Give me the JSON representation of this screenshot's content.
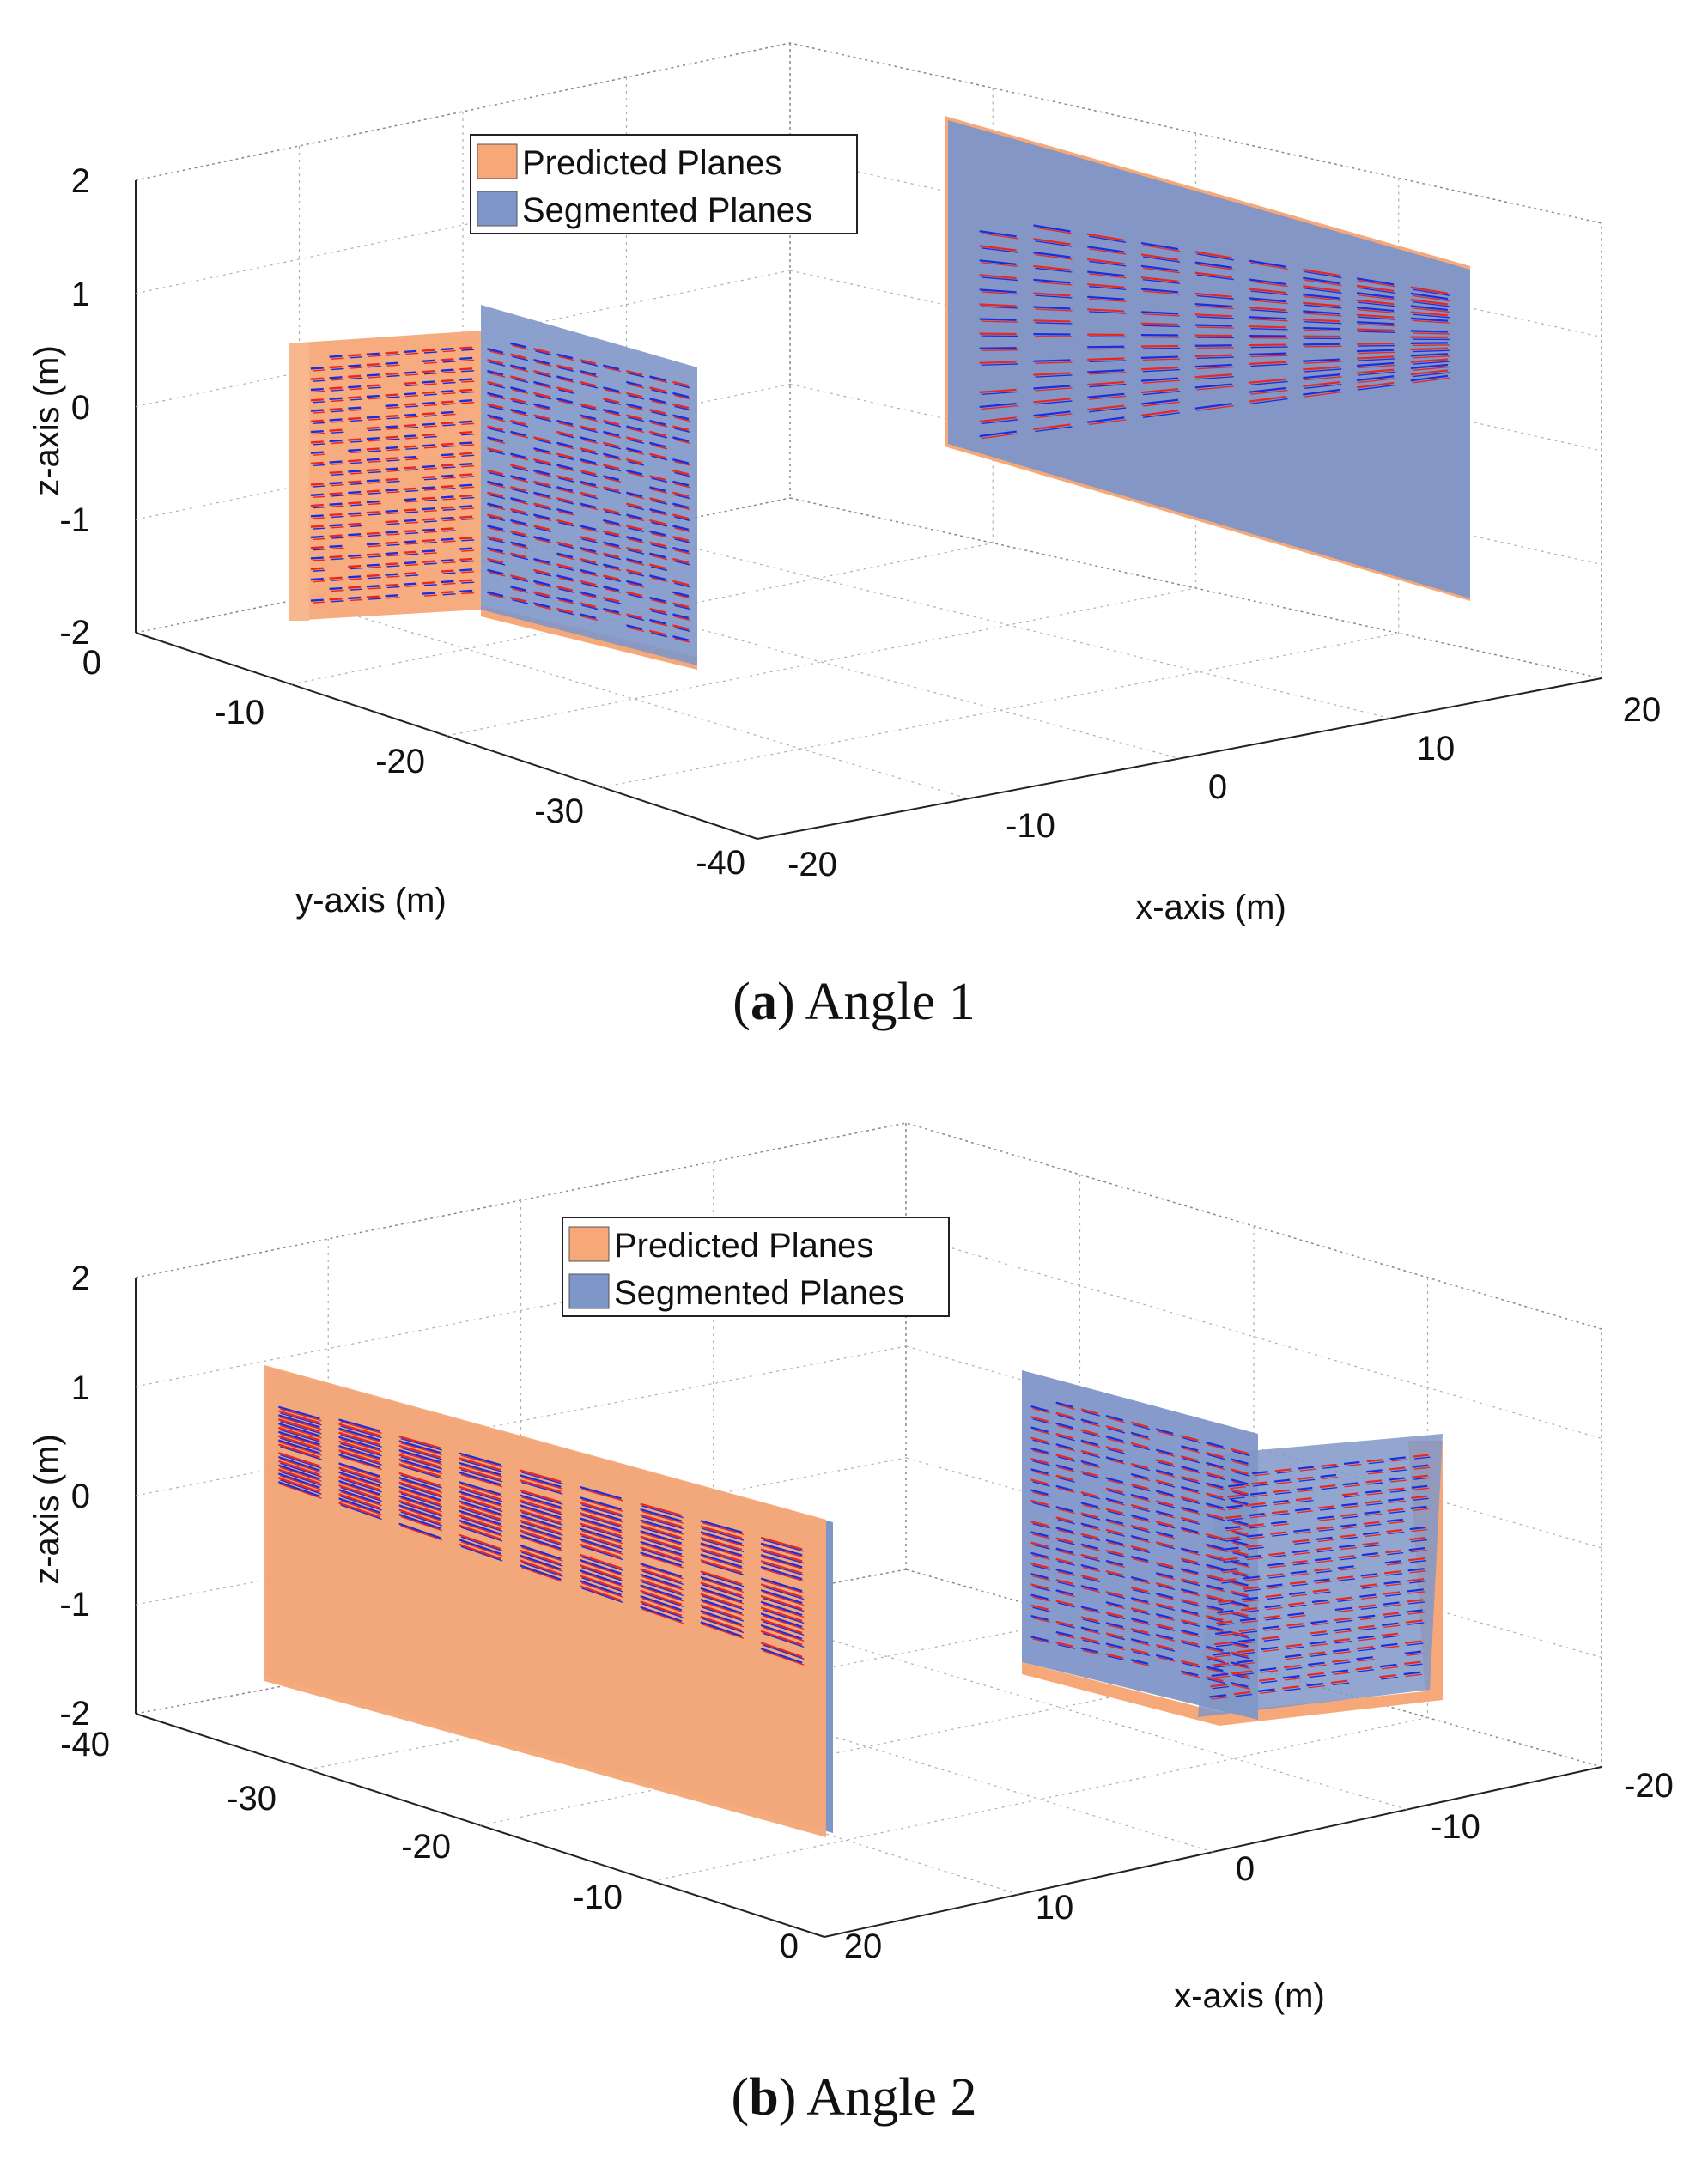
{
  "colors": {
    "predicted": "#f6a878",
    "segmented": "#7f96c8",
    "points_red": "#e8281e",
    "points_blue": "#1a2ee0"
  },
  "chart_data": [
    {
      "type": "scatter",
      "panel": "a",
      "caption_letter": "a",
      "caption_text": " Angle 1",
      "xlabel": "x-axis (m)",
      "ylabel": "y-axis (m)",
      "zlabel": "z-axis (m)",
      "xlim": [
        -20,
        20
      ],
      "ylim": [
        -40,
        0
      ],
      "zlim": [
        -2,
        2
      ],
      "x_ticks": [
        "-20",
        "-10",
        "0",
        "10",
        "20"
      ],
      "y_ticks": [
        "0",
        "-10",
        "-20",
        "-30",
        "-40"
      ],
      "z_ticks": [
        "2",
        "1",
        "0",
        "-1",
        "-2"
      ],
      "grid": true,
      "legend_position": "top-center",
      "series": [
        {
          "name": "Predicted Planes",
          "color": "#f6a878"
        },
        {
          "name": "Segmented Planes",
          "color": "#7f96c8"
        }
      ]
    },
    {
      "type": "scatter",
      "panel": "b",
      "caption_letter": "b",
      "caption_text": " Angle 2",
      "xlabel": "x-axis (m)",
      "ylabel": "",
      "zlabel": "z-axis (m)",
      "xlim": [
        -20,
        20
      ],
      "ylim": [
        -40,
        0
      ],
      "zlim": [
        -2,
        2
      ],
      "x_ticks": [
        "20",
        "10",
        "0",
        "-10",
        "-20"
      ],
      "y_ticks": [
        "-40",
        "-30",
        "-20",
        "-10",
        "0"
      ],
      "z_ticks": [
        "2",
        "1",
        "0",
        "-1",
        "-2"
      ],
      "grid": true,
      "legend_position": "top-center",
      "series": [
        {
          "name": "Predicted Planes",
          "color": "#f6a878"
        },
        {
          "name": "Segmented Planes",
          "color": "#7f96c8"
        }
      ]
    }
  ]
}
